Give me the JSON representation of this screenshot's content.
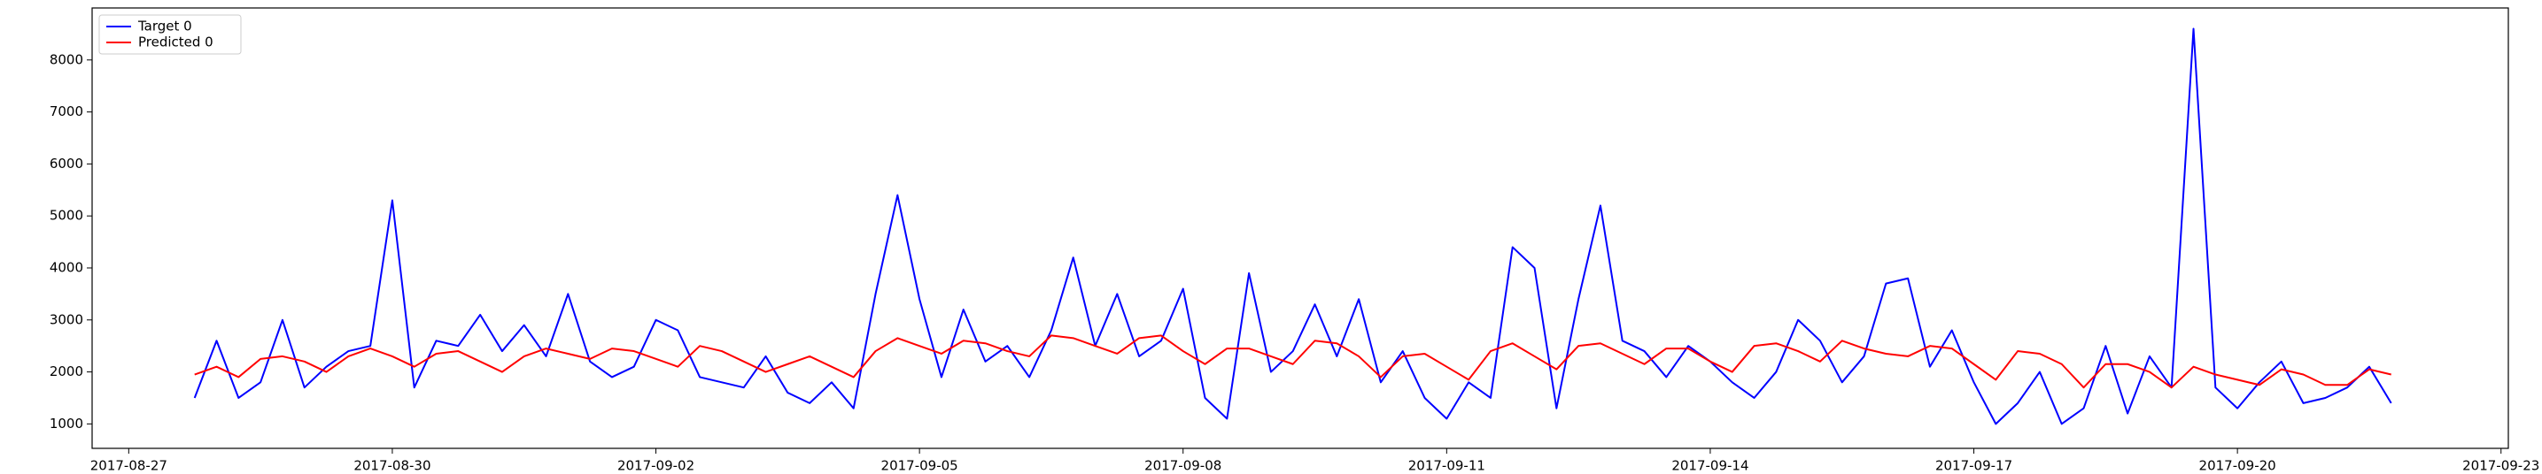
{
  "chart_data": {
    "type": "line",
    "x": [
      "2017-08-27T18:00",
      "2017-08-28T00:00",
      "2017-08-28T06:00",
      "2017-08-28T12:00",
      "2017-08-28T18:00",
      "2017-08-29T00:00",
      "2017-08-29T06:00",
      "2017-08-29T12:00",
      "2017-08-29T18:00",
      "2017-08-30T00:00",
      "2017-08-30T06:00",
      "2017-08-30T12:00",
      "2017-08-30T18:00",
      "2017-08-31T00:00",
      "2017-08-31T06:00",
      "2017-08-31T12:00",
      "2017-08-31T18:00",
      "2017-09-01T00:00",
      "2017-09-01T06:00",
      "2017-09-01T12:00",
      "2017-09-01T18:00",
      "2017-09-02T00:00",
      "2017-09-02T06:00",
      "2017-09-02T12:00",
      "2017-09-02T18:00",
      "2017-09-03T00:00",
      "2017-09-03T06:00",
      "2017-09-03T12:00",
      "2017-09-03T18:00",
      "2017-09-04T00:00",
      "2017-09-04T06:00",
      "2017-09-04T12:00",
      "2017-09-04T18:00",
      "2017-09-05T00:00",
      "2017-09-05T06:00",
      "2017-09-05T12:00",
      "2017-09-05T18:00",
      "2017-09-06T00:00",
      "2017-09-06T06:00",
      "2017-09-06T12:00",
      "2017-09-06T18:00",
      "2017-09-07T00:00",
      "2017-09-07T06:00",
      "2017-09-07T12:00",
      "2017-09-07T18:00",
      "2017-09-08T00:00",
      "2017-09-08T06:00",
      "2017-09-08T12:00",
      "2017-09-08T18:00",
      "2017-09-09T00:00",
      "2017-09-09T06:00",
      "2017-09-09T12:00",
      "2017-09-09T18:00",
      "2017-09-10T00:00",
      "2017-09-10T06:00",
      "2017-09-10T12:00",
      "2017-09-10T18:00",
      "2017-09-11T00:00",
      "2017-09-11T06:00",
      "2017-09-11T12:00",
      "2017-09-11T18:00",
      "2017-09-12T00:00",
      "2017-09-12T06:00",
      "2017-09-12T12:00",
      "2017-09-12T18:00",
      "2017-09-13T00:00",
      "2017-09-13T06:00",
      "2017-09-13T12:00",
      "2017-09-13T18:00",
      "2017-09-14T00:00",
      "2017-09-14T06:00",
      "2017-09-14T12:00",
      "2017-09-14T18:00",
      "2017-09-15T00:00",
      "2017-09-15T06:00",
      "2017-09-15T12:00",
      "2017-09-15T18:00",
      "2017-09-16T00:00",
      "2017-09-16T06:00",
      "2017-09-16T12:00",
      "2017-09-16T18:00",
      "2017-09-17T00:00",
      "2017-09-17T06:00",
      "2017-09-17T12:00",
      "2017-09-17T18:00",
      "2017-09-18T00:00",
      "2017-09-18T06:00",
      "2017-09-18T12:00",
      "2017-09-18T18:00",
      "2017-09-19T00:00",
      "2017-09-19T06:00",
      "2017-09-19T12:00",
      "2017-09-19T18:00",
      "2017-09-20T00:00",
      "2017-09-20T06:00",
      "2017-09-20T12:00",
      "2017-09-20T18:00",
      "2017-09-21T00:00",
      "2017-09-21T06:00",
      "2017-09-21T12:00",
      "2017-09-21T18:00"
    ],
    "series": [
      {
        "name": "Target 0",
        "color": "#0000ff",
        "values": [
          1500,
          2600,
          1500,
          1800,
          3000,
          1700,
          2100,
          2400,
          2500,
          5300,
          1700,
          2600,
          2500,
          3100,
          2400,
          2900,
          2300,
          3500,
          2200,
          1900,
          2100,
          3000,
          2800,
          1900,
          1800,
          1700,
          2300,
          1600,
          1400,
          1800,
          1300,
          3500,
          5400,
          3400,
          1900,
          3200,
          2200,
          2500,
          1900,
          2800,
          4200,
          2500,
          3500,
          2300,
          2600,
          3600,
          1500,
          1100,
          3900,
          2000,
          2400,
          3300,
          2300,
          3400,
          1800,
          2400,
          1500,
          1100,
          1800,
          1500,
          4400,
          4000,
          1300,
          3400,
          5200,
          2600,
          2400,
          1900,
          2500,
          2200,
          1800,
          1500,
          2000,
          3000,
          2600,
          1800,
          2300,
          3700,
          3800,
          2100,
          2800,
          1800,
          1000,
          1400,
          2000,
          1000,
          1300,
          2500,
          1200,
          2300,
          1700,
          8600,
          1700,
          1300,
          1800,
          2200,
          1400,
          1500,
          1700,
          2100,
          1400
        ]
      },
      {
        "name": "Predicted 0",
        "color": "#ff0000",
        "values": [
          1950,
          2100,
          1900,
          2250,
          2300,
          2200,
          2000,
          2300,
          2450,
          2300,
          2100,
          2350,
          2400,
          2200,
          2000,
          2300,
          2450,
          2350,
          2250,
          2450,
          2400,
          2250,
          2100,
          2500,
          2400,
          2200,
          2000,
          2150,
          2300,
          2100,
          1900,
          2400,
          2650,
          2500,
          2350,
          2600,
          2550,
          2400,
          2300,
          2700,
          2650,
          2500,
          2350,
          2650,
          2700,
          2400,
          2150,
          2450,
          2450,
          2300,
          2150,
          2600,
          2550,
          2300,
          1900,
          2300,
          2350,
          2100,
          1850,
          2400,
          2550,
          2300,
          2050,
          2500,
          2550,
          2350,
          2150,
          2450,
          2450,
          2200,
          2000,
          2500,
          2550,
          2400,
          2200,
          2600,
          2450,
          2350,
          2300,
          2500,
          2450,
          2150,
          1850,
          2400,
          2350,
          2150,
          1700,
          2150,
          2150,
          2000,
          1700,
          2100,
          1950,
          1850,
          1750,
          2050,
          1950,
          1750,
          1750,
          2050,
          1950
        ]
      }
    ],
    "xlim": [
      "2017-08-26T14:00",
      "2017-09-23T02:00"
    ],
    "xticks": [
      "2017-08-27",
      "2017-08-30",
      "2017-09-02",
      "2017-09-05",
      "2017-09-08",
      "2017-09-11",
      "2017-09-14",
      "2017-09-17",
      "2017-09-20",
      "2017-09-23"
    ],
    "ylim": [
      530,
      9000
    ],
    "yticks": [
      1000,
      2000,
      3000,
      4000,
      5000,
      6000,
      7000,
      8000
    ],
    "legend": "upper left"
  }
}
